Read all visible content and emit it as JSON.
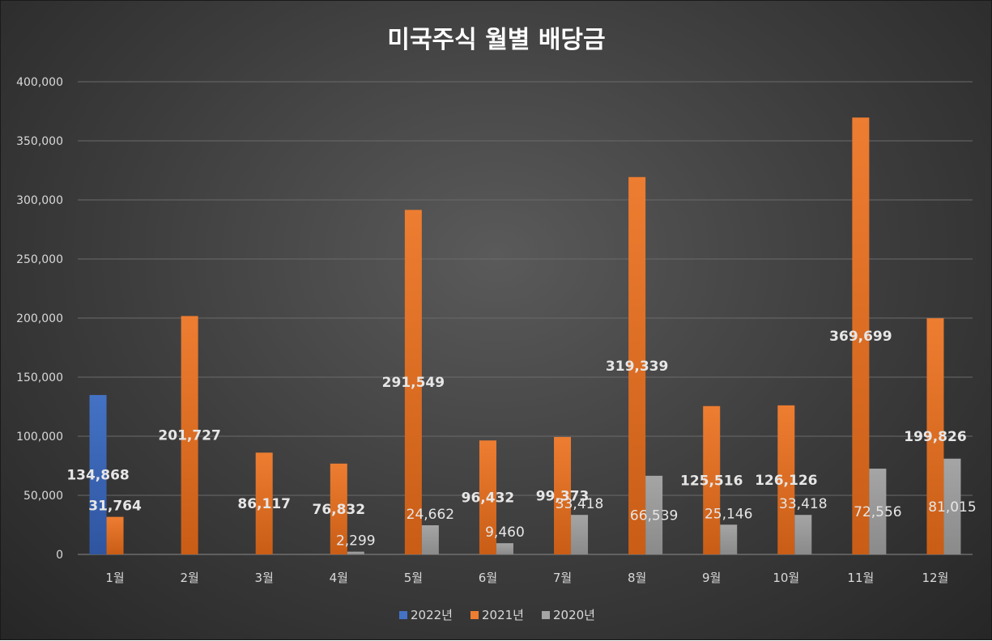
{
  "chart_data": {
    "type": "bar",
    "title": "미국주식 월별 배당금",
    "categories": [
      "1월",
      "2월",
      "3월",
      "4월",
      "5월",
      "6월",
      "7월",
      "8월",
      "9월",
      "10월",
      "11월",
      "12월"
    ],
    "series": [
      {
        "name": "2022년",
        "color": "#4472c4",
        "values": [
          134868,
          null,
          null,
          null,
          null,
          null,
          null,
          null,
          null,
          null,
          null,
          null
        ],
        "labels": [
          "134,868",
          "",
          "",
          "",
          "",
          "",
          "",
          "",
          "",
          "",
          "",
          ""
        ]
      },
      {
        "name": "2021년",
        "color": "#ed7d31",
        "values": [
          31764,
          201727,
          86117,
          76832,
          291549,
          96432,
          99373,
          319339,
          125516,
          126126,
          369699,
          199826
        ],
        "labels": [
          "31,764",
          "201,727",
          "86,117",
          "76,832",
          "291,549",
          "96,432",
          "99,373",
          "319,339",
          "125,516",
          "126,126",
          "369,699",
          "199,826"
        ]
      },
      {
        "name": "2020년",
        "color": "#a5a5a5",
        "values": [
          null,
          null,
          null,
          2299,
          24662,
          9460,
          33418,
          66539,
          25146,
          33418,
          72556,
          81015
        ],
        "labels": [
          "",
          "",
          "",
          "2,299",
          "24,662",
          "9,460",
          "33,418",
          "66,539",
          "25,146",
          "33,418",
          "72,556",
          "81,015"
        ]
      }
    ],
    "ylim": [
      0,
      400000
    ],
    "yticks": [
      0,
      50000,
      100000,
      150000,
      200000,
      250000,
      300000,
      350000,
      400000
    ],
    "ytick_labels": [
      "0",
      "50,000",
      "100,000",
      "150,000",
      "200,000",
      "250,000",
      "300,000",
      "350,000",
      "400,000"
    ],
    "grid": true,
    "legend_position": "bottom-center"
  }
}
